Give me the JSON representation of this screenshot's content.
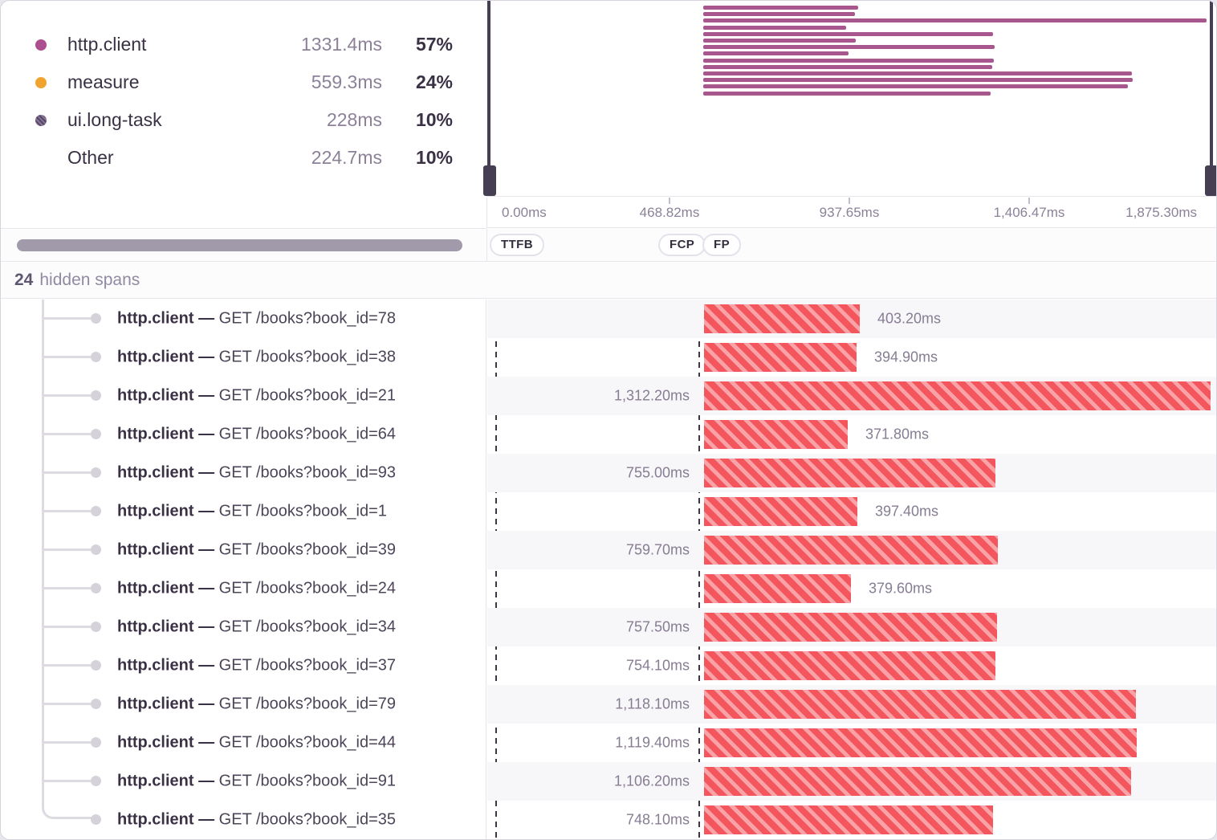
{
  "legend": {
    "items": [
      {
        "name": "http.client",
        "duration": "1331.4ms",
        "percent": "57%",
        "color": "#ad4f8e",
        "pattern": false
      },
      {
        "name": "measure",
        "duration": "559.3ms",
        "percent": "24%",
        "color": "#f0a42f",
        "pattern": false
      },
      {
        "name": "ui.long-task",
        "duration": "228ms",
        "percent": "10%",
        "color": "#564967",
        "pattern": true
      },
      {
        "name": "Other",
        "duration": "224.7ms",
        "percent": "10%",
        "color": null,
        "pattern": false
      }
    ]
  },
  "minimap": {
    "bar_color": "#a8578e",
    "axis_ticks": [
      "0.00ms",
      "468.82ms",
      "937.65ms",
      "1,406.47ms",
      "1,875.30ms"
    ],
    "axis_range_ms": [
      0,
      1875.3
    ],
    "markers": [
      "TTFB",
      "FCP",
      "FP"
    ]
  },
  "hidden_spans": {
    "count": "24",
    "label": "hidden spans"
  },
  "spans": {
    "op": "http.client",
    "separator": "—",
    "rows": [
      {
        "description": "GET /books?book_id=78",
        "duration_ms": 403.2,
        "duration_label": "403.20ms",
        "label_side": "right"
      },
      {
        "description": "GET /books?book_id=38",
        "duration_ms": 394.9,
        "duration_label": "394.90ms",
        "label_side": "right"
      },
      {
        "description": "GET /books?book_id=21",
        "duration_ms": 1312.2,
        "duration_label": "1,312.20ms",
        "label_side": "left"
      },
      {
        "description": "GET /books?book_id=64",
        "duration_ms": 371.8,
        "duration_label": "371.80ms",
        "label_side": "right"
      },
      {
        "description": "GET /books?book_id=93",
        "duration_ms": 755.0,
        "duration_label": "755.00ms",
        "label_side": "left"
      },
      {
        "description": "GET /books?book_id=1",
        "duration_ms": 397.4,
        "duration_label": "397.40ms",
        "label_side": "right"
      },
      {
        "description": "GET /books?book_id=39",
        "duration_ms": 759.7,
        "duration_label": "759.70ms",
        "label_side": "left"
      },
      {
        "description": "GET /books?book_id=24",
        "duration_ms": 379.6,
        "duration_label": "379.60ms",
        "label_side": "right"
      },
      {
        "description": "GET /books?book_id=34",
        "duration_ms": 757.5,
        "duration_label": "757.50ms",
        "label_side": "left"
      },
      {
        "description": "GET /books?book_id=37",
        "duration_ms": 754.1,
        "duration_label": "754.10ms",
        "label_side": "left"
      },
      {
        "description": "GET /books?book_id=79",
        "duration_ms": 1118.1,
        "duration_label": "1,118.10ms",
        "label_side": "left"
      },
      {
        "description": "GET /books?book_id=44",
        "duration_ms": 1119.4,
        "duration_label": "1,119.40ms",
        "label_side": "left"
      },
      {
        "description": "GET /books?book_id=91",
        "duration_ms": 1106.2,
        "duration_label": "1,106.20ms",
        "label_side": "left"
      },
      {
        "description": "GET /books?book_id=35",
        "duration_ms": 748.1,
        "duration_label": "748.10ms",
        "label_side": "left"
      }
    ]
  }
}
